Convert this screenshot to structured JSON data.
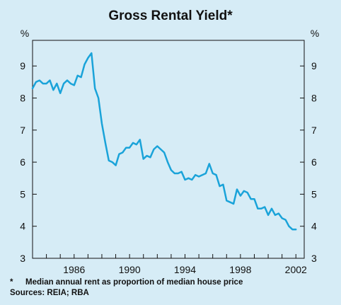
{
  "chart_data": {
    "type": "line",
    "title": "Gross Rental Yield*",
    "y_unit_left": "%",
    "y_unit_right": "%",
    "ylim": [
      3,
      9.8
    ],
    "xlim": [
      1983.0,
      2002.6
    ],
    "y_ticks": [
      3,
      4,
      5,
      6,
      7,
      8,
      9
    ],
    "x_tick_labels": [
      "1986",
      "1990",
      "1994",
      "1998",
      "2002"
    ],
    "x_tick_values": [
      1986,
      1990,
      1994,
      1998,
      2002
    ],
    "grid": false,
    "series": [
      {
        "color": "#1aa3d9",
        "x": [
          1983.0,
          1983.25,
          1983.5,
          1983.75,
          1984.0,
          1984.25,
          1984.5,
          1984.75,
          1985.0,
          1985.25,
          1985.5,
          1985.75,
          1986.0,
          1986.25,
          1986.5,
          1986.75,
          1987.0,
          1987.25,
          1987.5,
          1987.75,
          1988.0,
          1988.25,
          1988.5,
          1988.75,
          1989.0,
          1989.25,
          1989.5,
          1989.75,
          1990.0,
          1990.25,
          1990.5,
          1990.75,
          1991.0,
          1991.25,
          1991.5,
          1991.75,
          1992.0,
          1992.25,
          1992.5,
          1992.75,
          1993.0,
          1993.25,
          1993.5,
          1993.75,
          1994.0,
          1994.25,
          1994.5,
          1994.75,
          1995.0,
          1995.25,
          1995.5,
          1995.75,
          1996.0,
          1996.25,
          1996.5,
          1996.75,
          1997.0,
          1997.25,
          1997.5,
          1997.75,
          1998.0,
          1998.25,
          1998.5,
          1998.75,
          1999.0,
          1999.25,
          1999.5,
          1999.75,
          2000.0,
          2000.25,
          2000.5,
          2000.75,
          2001.0,
          2001.25,
          2001.5,
          2001.75,
          2002.0
        ],
        "y": [
          8.3,
          8.5,
          8.55,
          8.45,
          8.45,
          8.55,
          8.25,
          8.45,
          8.15,
          8.45,
          8.55,
          8.45,
          8.4,
          8.7,
          8.65,
          9.05,
          9.25,
          9.4,
          8.3,
          8.0,
          7.2,
          6.6,
          6.05,
          6.0,
          5.9,
          6.25,
          6.3,
          6.45,
          6.45,
          6.6,
          6.55,
          6.7,
          6.1,
          6.2,
          6.15,
          6.4,
          6.5,
          6.4,
          6.3,
          6.0,
          5.75,
          5.65,
          5.65,
          5.7,
          5.45,
          5.5,
          5.45,
          5.6,
          5.55,
          5.6,
          5.65,
          5.95,
          5.65,
          5.6,
          5.25,
          5.3,
          4.8,
          4.75,
          4.7,
          5.15,
          4.95,
          5.1,
          5.05,
          4.85,
          4.85,
          4.55,
          4.55,
          4.6,
          4.35,
          4.55,
          4.35,
          4.4,
          4.25,
          4.2,
          4.0,
          3.9,
          3.9
        ]
      }
    ]
  },
  "footnote": {
    "marker": "*",
    "text": "Median annual rent as proportion of median house price",
    "sources": "Sources: REIA; RBA"
  }
}
